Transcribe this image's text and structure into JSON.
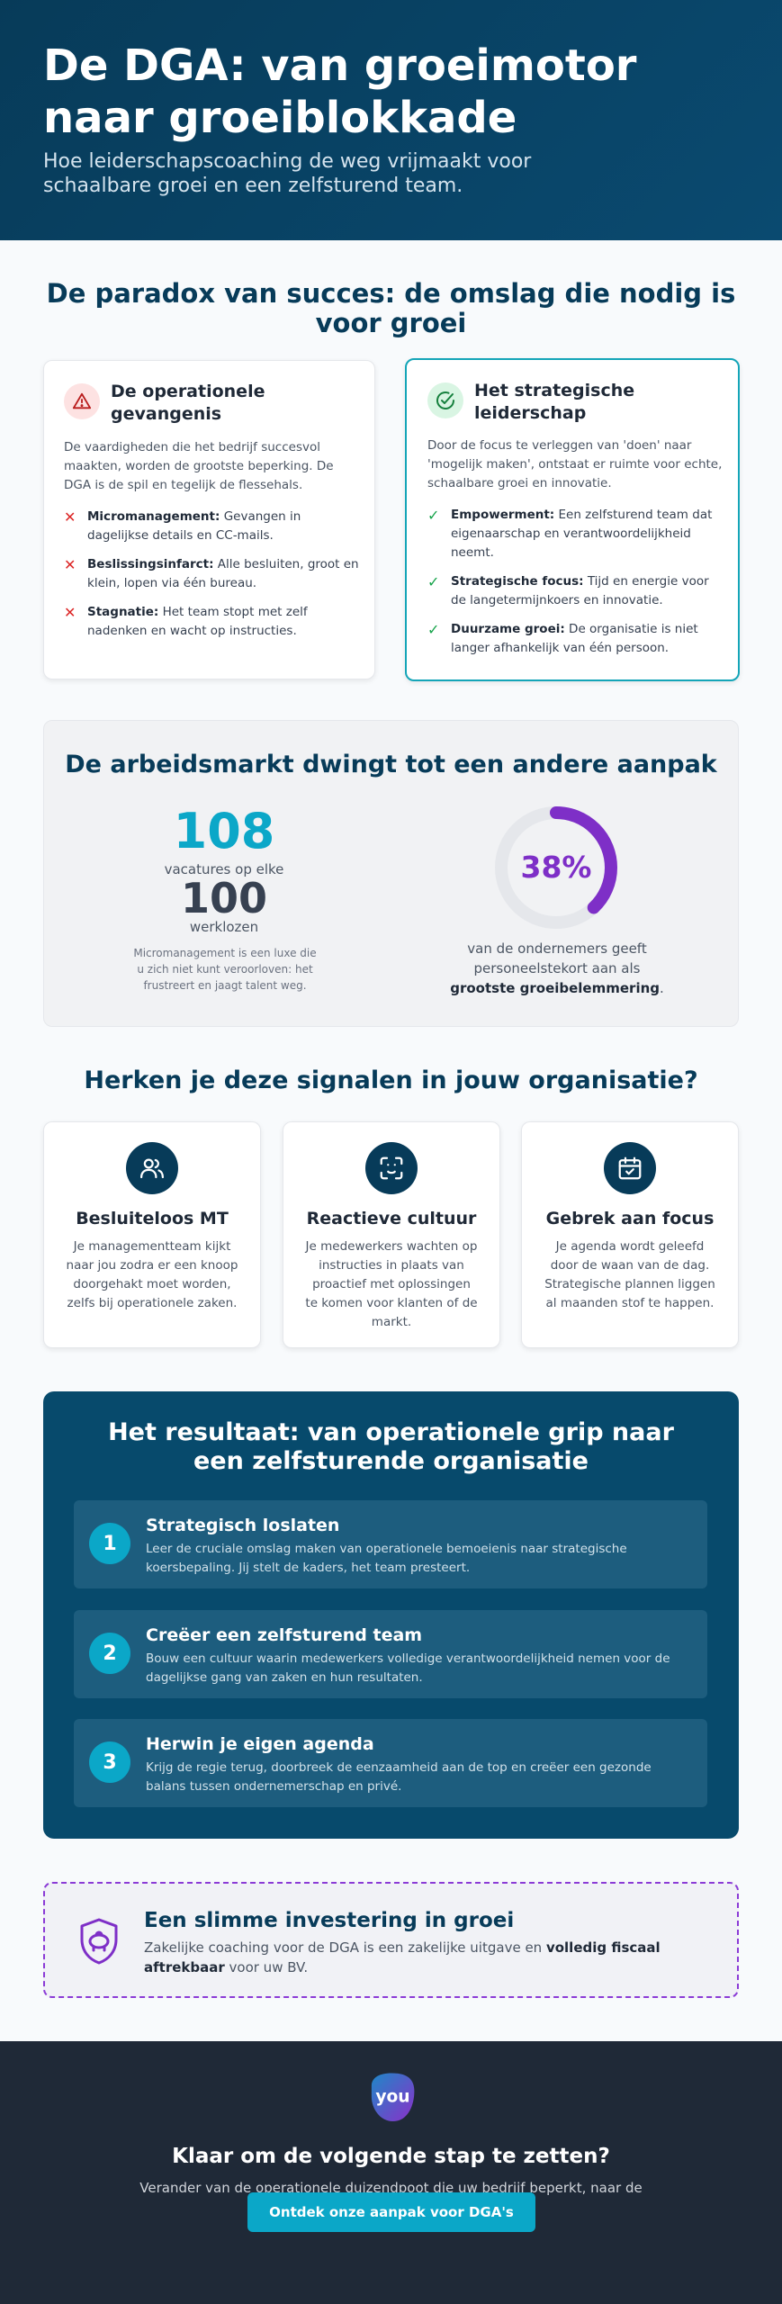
{
  "hero": {
    "title": "De DGA: van groeimotor naar groeiblokkade",
    "subtitle": "Hoe leiderschapscoaching de weg vrijmaakt voor schaalbare groei en een zelfsturend team."
  },
  "paradox": {
    "title": "De paradox van succes: de omslag die nodig is voor groei",
    "left": {
      "icon": "warning-icon",
      "title": "De operationele gevangenis",
      "intro": "De vaardigheden die het bedrijf succesvol maakten, worden de grootste beperking. De DGA is de spil en tegelijk de flessehals.",
      "items": [
        {
          "bold": "Micromanagement:",
          "text": " Gevangen in dagelijkse details en CC-mails."
        },
        {
          "bold": "Beslissingsinfarct:",
          "text": " Alle besluiten, groot en klein, lopen via één bureau."
        },
        {
          "bold": "Stagnatie:",
          "text": " Het team stopt met zelf nadenken en wacht op instructies."
        }
      ]
    },
    "right": {
      "icon": "check-circle-icon",
      "title": "Het strategische leiderschap",
      "intro": "Door de focus te verleggen van 'doen' naar 'mogelijk maken', ontstaat er ruimte voor echte, schaalbare groei en innovatie.",
      "items": [
        {
          "bold": "Empowerment:",
          "text": " Een zelfsturend team dat eigenaarschap en verantwoordelijkheid neemt."
        },
        {
          "bold": "Strategische focus:",
          "text": " Tijd en energie voor de langetermijnkoers en innovatie."
        },
        {
          "bold": "Duurzame groei:",
          "text": " De organisatie is niet langer afhankelijk van één persoon."
        }
      ]
    }
  },
  "market": {
    "title": "De arbeidsmarkt dwingt tot een andere aanpak",
    "vacancies": "108",
    "vacancies_label": "vacatures op elke",
    "unemployed": "100",
    "unemployed_label": "werklozen",
    "note": "Micromanagement is een luxe die u zich niet kunt veroorloven: het frustreert en jaagt talent weg.",
    "percent_label": "38%",
    "percent_value": 38,
    "caption_pre": "van de ondernemers geeft personeelstekort aan als ",
    "caption_bold": "grootste groeibelemmering",
    "caption_post": "."
  },
  "signals": {
    "title": "Herken je deze signalen in jouw organisatie?",
    "cards": [
      {
        "icon": "users-icon",
        "title": "Besluiteloos MT",
        "text": "Je managementteam kijkt naar jou zodra er een knoop doorgehakt moet worden, zelfs bij operationele zaken."
      },
      {
        "icon": "scan-face-icon",
        "title": "Reactieve cultuur",
        "text": "Je medewerkers wachten op instructies in plaats van proactief met oplossingen te komen voor klanten of de markt."
      },
      {
        "icon": "calendar-check-icon",
        "title": "Gebrek aan focus",
        "text": "Je agenda wordt geleefd door de waan van de dag. Strategische plannen liggen al maanden stof te happen."
      }
    ]
  },
  "result": {
    "title": "Het resultaat: van operationele grip naar een zelfsturende organisatie",
    "steps": [
      {
        "num": "1",
        "title": "Strategisch loslaten",
        "text": "Leer de cruciale omslag maken van operationele bemoeienis naar strategische koersbepaling. Jij stelt de kaders, het team presteert."
      },
      {
        "num": "2",
        "title": "Creëer een zelfsturend team",
        "text": "Bouw een cultuur waarin medewerkers volledige verantwoordelijkheid nemen voor de dagelijkse gang van zaken en hun resultaten."
      },
      {
        "num": "3",
        "title": "Herwin je eigen agenda",
        "text": "Krijg de regie terug, doorbreek de eenzaamheid aan de top en creëer een gezonde balans tussen ondernemerschap en privé."
      }
    ]
  },
  "invest": {
    "icon": "shield-piggy-icon",
    "title": "Een slimme investering in groei",
    "text_pre": "Zakelijke coaching voor de DGA is een zakelijke uitgave en ",
    "text_bold": "volledig fiscaal aftrekbaar",
    "text_post": " voor uw BV."
  },
  "footer": {
    "logo_text": "you",
    "title": "Klaar om de volgende stap te zetten?",
    "text": "Verander van de operationele duizendpoot die uw bedrijf beperkt, naar de strategische leider die het laat groeien.",
    "cta": "Ontdek onze aanpak voor DGA's"
  },
  "colors": {
    "navy": "#073b59",
    "teal": "#0ba7c8",
    "purple": "#7e2fc7",
    "danger": "#dc2626",
    "success": "#16a34a",
    "footer": "#1f2937"
  }
}
